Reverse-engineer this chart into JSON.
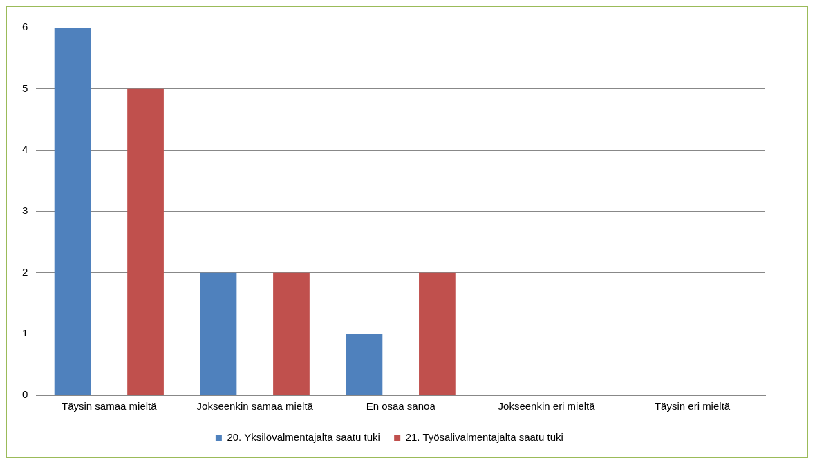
{
  "chart_data": {
    "type": "bar",
    "categories": [
      "Täysin samaa mieltä",
      "Jokseenkin samaa mieltä",
      "En osaa sanoa",
      "Jokseenkin eri mieltä",
      "Täysin eri mieltä"
    ],
    "series": [
      {
        "name": "20. Yksilövalmentajalta saatu tuki",
        "color": "#4f81bd",
        "values": [
          6,
          2,
          1,
          0,
          0
        ]
      },
      {
        "name": "21. Työsalivalmentajalta saatu tuki",
        "color": "#c0504d",
        "values": [
          5,
          2,
          2,
          0,
          0
        ]
      }
    ],
    "ylim": [
      0,
      6
    ],
    "yticks": [
      0,
      1,
      2,
      3,
      4,
      5,
      6
    ],
    "grid": "y",
    "legend": "bottom"
  }
}
